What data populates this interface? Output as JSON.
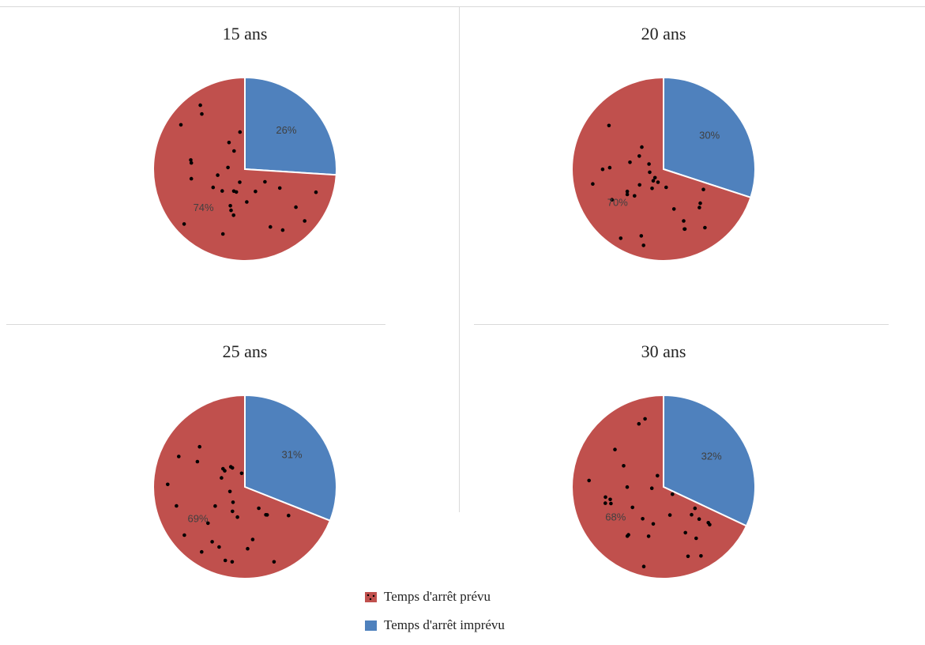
{
  "colors": {
    "planned": "#c0504d",
    "unplanned": "#4f81bd",
    "dots": "#000000"
  },
  "legend": {
    "planned_label": "Temps d'arrêt prévu",
    "unplanned_label": "Temps d'arrêt imprévu"
  },
  "chart_data": [
    {
      "type": "pie",
      "title": "15 ans",
      "labels": [
        "Temps d'arrêt imprévu",
        "Temps d'arrêt prévu"
      ],
      "values": [
        26,
        74
      ],
      "data_labels": [
        "26%",
        "74%"
      ]
    },
    {
      "type": "pie",
      "title": "20 ans",
      "labels": [
        "Temps d'arrêt imprévu",
        "Temps d'arrêt prévu"
      ],
      "values": [
        30,
        70
      ],
      "data_labels": [
        "30%",
        "70%"
      ]
    },
    {
      "type": "pie",
      "title": "25 ans",
      "labels": [
        "Temps d'arrêt imprévu",
        "Temps d'arrêt prévu"
      ],
      "values": [
        31,
        69
      ],
      "data_labels": [
        "31%",
        "69%"
      ]
    },
    {
      "type": "pie",
      "title": "30 ans",
      "labels": [
        "Temps d'arrêt imprévu",
        "Temps d'arrêt prévu"
      ],
      "values": [
        32,
        68
      ],
      "data_labels": [
        "32%",
        "68%"
      ]
    }
  ]
}
